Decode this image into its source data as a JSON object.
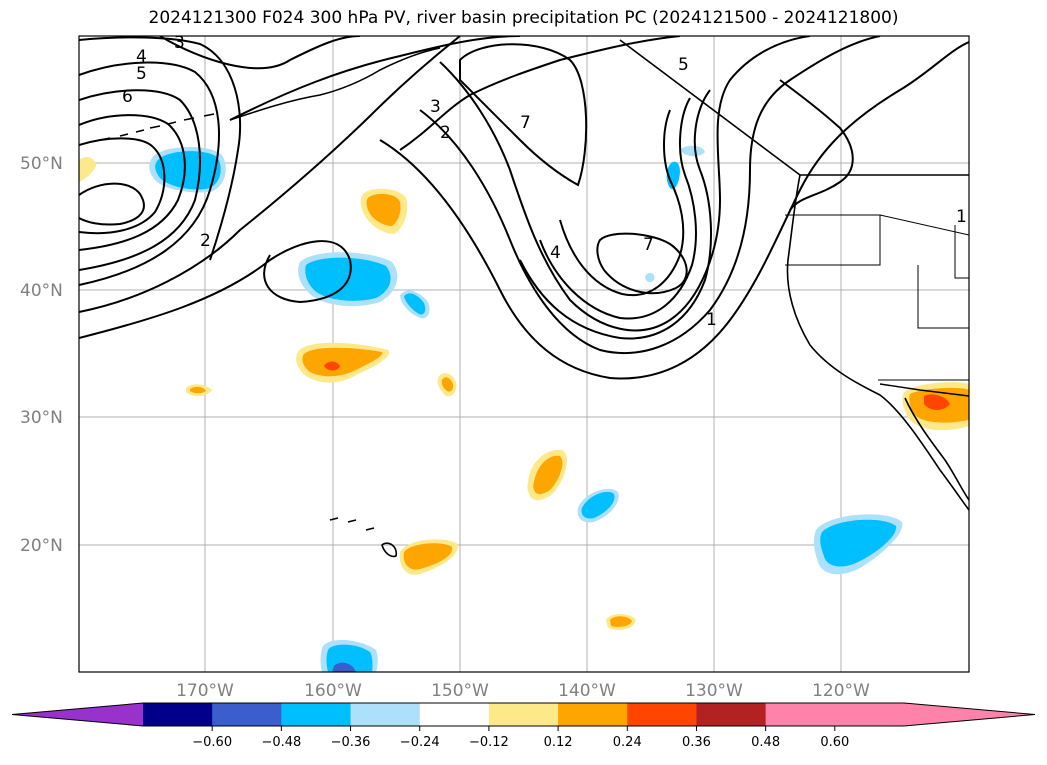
{
  "title": "2024121300 F024 300 hPa PV, river basin precipitation PC (2024121500 - 2024121800)",
  "map": {
    "lat_labels": [
      "50°N",
      "40°N",
      "30°N",
      "20°N"
    ],
    "lon_labels": [
      "170°W",
      "160°W",
      "150°W",
      "140°W",
      "130°W",
      "120°W"
    ],
    "contour_labels": [
      "3",
      "4",
      "5",
      "6",
      "3",
      "2",
      "7",
      "2",
      "4",
      "7",
      "1",
      "5",
      "1"
    ],
    "colors": {
      "land_outline": "#000000",
      "grid": "#b0b0b0",
      "pos_light": "#fde88a",
      "pos_mid": "#ffa500",
      "pos_strong": "#ff4500",
      "neg_light": "#ade1fb",
      "neg_mid": "#00bfff",
      "neg_strong": "#3a5fcd"
    }
  },
  "colorbar": {
    "ticks": [
      "−0.60",
      "−0.48",
      "−0.36",
      "−0.24",
      "−0.12",
      "0.12",
      "0.24",
      "0.36",
      "0.48",
      "0.60"
    ],
    "colors": [
      "#9932cc",
      "#00008b",
      "#3a5fcd",
      "#00bfff",
      "#ade1fb",
      "#ffffff",
      "#fde88a",
      "#ffa500",
      "#ff4500",
      "#b22222",
      "#ff82ab",
      "#ff82ab"
    ]
  }
}
